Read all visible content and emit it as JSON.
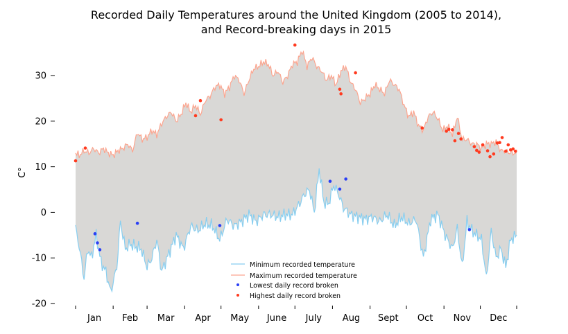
{
  "chart_data": {
    "type": "line",
    "title_line1": "Recorded Daily Temperatures around the United Kingdom (2005 to 2014),",
    "title_line2": "and Record-breaking days in 2015",
    "ylabel": "C°",
    "ylim": [
      -20,
      37
    ],
    "xlim": [
      1,
      365
    ],
    "yticks": [
      -20,
      -10,
      0,
      10,
      20,
      30
    ],
    "ytick_labels": [
      "-20",
      "-10",
      "0",
      "10",
      "20",
      "30"
    ],
    "months": [
      "Jan",
      "Feb",
      "Mar",
      "Apr",
      "May",
      "June",
      "July",
      "Aug",
      "Sept",
      "Oct",
      "Nov",
      "Dec"
    ],
    "month_starts": [
      1,
      32,
      60,
      91,
      121,
      152,
      182,
      213,
      244,
      274,
      305,
      335,
      365
    ],
    "colors": {
      "min_line": "#87cef0",
      "max_line": "#fca58f",
      "fill": "#d9d8d6",
      "low_point": "#2a3ff5",
      "high_point": "#ff3a1f"
    },
    "series": [
      {
        "name": "Minimum recorded temperature",
        "x": [
          1,
          4,
          8,
          11,
          14,
          18,
          22,
          26,
          30,
          35,
          38,
          42,
          46,
          50,
          55,
          60,
          64,
          68,
          72,
          78,
          84,
          90,
          96,
          102,
          108,
          114,
          120,
          126,
          132,
          138,
          144,
          150,
          156,
          162,
          168,
          174,
          180,
          186,
          190,
          194,
          198,
          202,
          206,
          210,
          214,
          218,
          222,
          228,
          234,
          240,
          246,
          252,
          258,
          264,
          270,
          276,
          282,
          288,
          294,
          300,
          306,
          312,
          316,
          320,
          324,
          328,
          332,
          336,
          340,
          344,
          348,
          352,
          356,
          360,
          365
        ],
        "y": [
          -3.5,
          -7.5,
          -14.5,
          -8,
          -10,
          -5,
          -11,
          -13,
          -17.5,
          -12,
          -2,
          -8,
          -7,
          -7.5,
          -8,
          -12,
          -10,
          -6,
          -13,
          -9,
          -5,
          -8,
          -3,
          -4,
          -2.5,
          -3,
          -6,
          -1.5,
          -3,
          -2,
          -0.5,
          -2,
          -0.5,
          -0.5,
          -1,
          -0.5,
          -0.5,
          2,
          4,
          5,
          0,
          9.5,
          2,
          2,
          6,
          4,
          1,
          -0.5,
          -1,
          -1.5,
          -1,
          -2,
          -0.5,
          -3,
          -1,
          -2.5,
          -1.5,
          -10,
          -1.5,
          -0.5,
          -5,
          -8,
          -3.5,
          -12,
          -2,
          -4,
          -5,
          -6,
          -14.5,
          -4,
          -10,
          -8,
          -12,
          -6,
          -5
        ]
      },
      {
        "name": "Maximum recorded temperature",
        "x": [
          1,
          4,
          8,
          12,
          16,
          20,
          24,
          28,
          32,
          36,
          40,
          44,
          48,
          52,
          56,
          60,
          64,
          68,
          72,
          76,
          80,
          84,
          88,
          92,
          96,
          100,
          104,
          108,
          112,
          116,
          120,
          124,
          128,
          132,
          136,
          140,
          144,
          148,
          152,
          156,
          160,
          164,
          168,
          172,
          176,
          180,
          184,
          188,
          192,
          196,
          200,
          204,
          208,
          212,
          216,
          220,
          224,
          228,
          232,
          236,
          240,
          244,
          248,
          252,
          256,
          260,
          264,
          268,
          272,
          276,
          280,
          284,
          288,
          292,
          296,
          300,
          304,
          308,
          312,
          316,
          320,
          324,
          328,
          332,
          336,
          340,
          344,
          348,
          352,
          356,
          360,
          365
        ],
        "y": [
          13,
          12.5,
          13.5,
          13,
          14,
          13,
          14,
          13,
          12.5,
          13.5,
          14,
          15,
          13.5,
          17.5,
          16,
          16.5,
          18,
          17,
          19.5,
          21,
          22,
          20,
          21.5,
          24,
          22,
          23.5,
          21.5,
          24.5,
          25.5,
          27.5,
          28,
          26,
          27.5,
          30,
          29,
          26,
          29,
          31.5,
          32,
          33,
          32.5,
          30,
          31,
          28.5,
          30,
          32.5,
          33,
          35.5,
          32,
          34,
          32,
          31,
          29,
          30,
          28,
          31,
          32,
          28.5,
          27,
          24,
          25,
          26,
          28,
          27,
          26,
          29,
          28,
          27,
          23.5,
          21,
          22,
          19,
          18,
          21,
          22,
          20.5,
          18,
          19,
          17,
          21,
          16,
          16,
          15,
          15,
          14,
          15,
          15,
          15.5,
          13.5,
          13.5,
          13,
          13
        ]
      }
    ],
    "points": [
      {
        "name": "Lowest daily record broken",
        "x": [
          17,
          19,
          21,
          52,
          120,
          211,
          219,
          224,
          326
        ],
        "y": [
          -4.7,
          -6.7,
          -8.2,
          -2.4,
          -2.9,
          6.8,
          5.1,
          7.3,
          -3.8
        ]
      },
      {
        "name": "Highest daily record broken",
        "x": [
          1,
          9,
          100,
          104,
          121,
          182,
          219,
          220,
          232,
          287,
          307,
          309,
          312,
          314,
          317,
          319,
          330,
          332,
          334,
          337,
          341,
          343,
          346,
          349,
          351,
          353,
          356,
          358,
          360,
          362,
          364
        ],
        "y": [
          11.3,
          14.1,
          21.2,
          24.5,
          20.3,
          36.7,
          27.0,
          26.0,
          30.6,
          18.5,
          17.8,
          18.2,
          18.1,
          15.7,
          17.3,
          16.1,
          14.4,
          13.6,
          13.2,
          14.8,
          13.5,
          12.2,
          12.8,
          15.2,
          15.3,
          16.4,
          13.4,
          14.8,
          13.7,
          13.9,
          13.4
        ]
      }
    ],
    "legend_position": "lower center",
    "grid": false
  }
}
